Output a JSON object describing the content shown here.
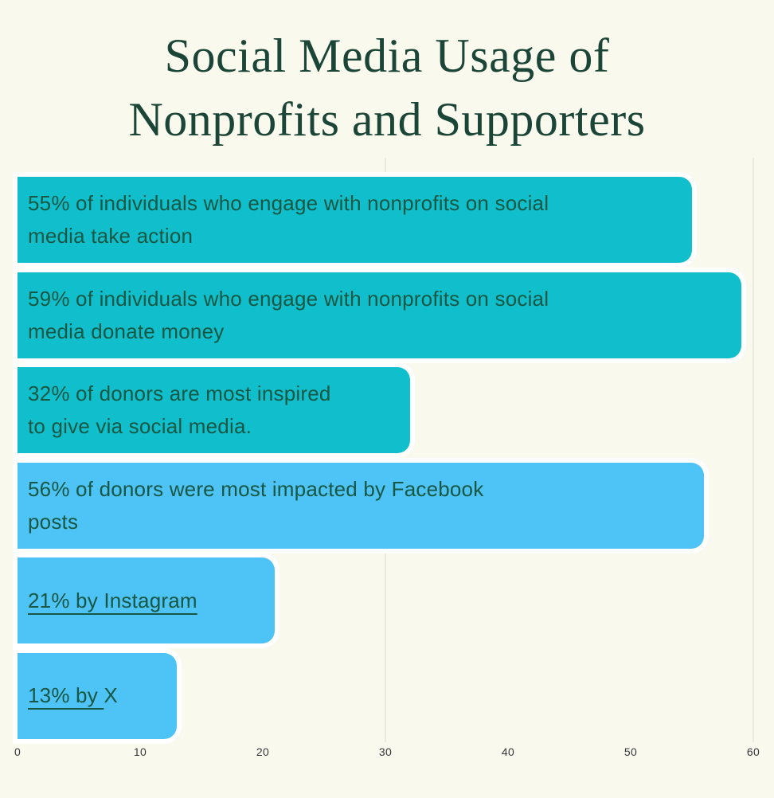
{
  "page": {
    "background_color": "#FAF9EE",
    "title": {
      "line1": "Social Media Usage of",
      "line2": "Nonprofits and Supporters",
      "color": "#1B4536"
    }
  },
  "chart_data": {
    "type": "bar",
    "orientation": "horizontal",
    "title": "Social Media Usage of Nonprofits and Supporters",
    "xlabel": "",
    "ylabel": "",
    "xlim": [
      0,
      60
    ],
    "x_ticks": [
      "0",
      "10",
      "20",
      "30",
      "40",
      "50",
      "60"
    ],
    "gridlines_at": [
      30,
      60
    ],
    "grid_color": "#DCDCD2",
    "legend": "none",
    "bar_label_color": "#175743",
    "axis_label_color": "#34383D",
    "bar_outline_color": "#FFFFFF",
    "bars": [
      {
        "value": 55,
        "color": "#10BFCB",
        "label": "55% of individuals who engage with nonprofits on social media take action",
        "lines": [
          "55% of individuals who engage with nonprofits on social",
          "media take action"
        ]
      },
      {
        "value": 59,
        "color": "#10BFCB",
        "label": "59% of individuals who engage with nonprofits on social media donate money",
        "lines": [
          "59% of individuals who engage with nonprofits on social",
          "media donate money"
        ]
      },
      {
        "value": 32,
        "color": "#10BFCB",
        "label": "32% of donors are most inspired to give via social media.",
        "lines": [
          "32% of donors are most inspired",
          "to give via social media."
        ]
      },
      {
        "value": 56,
        "color": "#4EC3F6",
        "label": "56% of donors were most impacted by Facebook posts",
        "lines": [
          "56% of donors were most impacted by Facebook",
          "posts"
        ]
      },
      {
        "value": 21,
        "color": "#4EC3F6",
        "label": "21% by Instagram",
        "lines": [
          "21% by Instagram"
        ],
        "underline_prefix": "21% by Instagram"
      },
      {
        "value": 13,
        "color": "#4EC3F6",
        "label": "13% by X",
        "lines": [
          "13% by X"
        ],
        "underline_prefix": "13% by "
      }
    ]
  }
}
